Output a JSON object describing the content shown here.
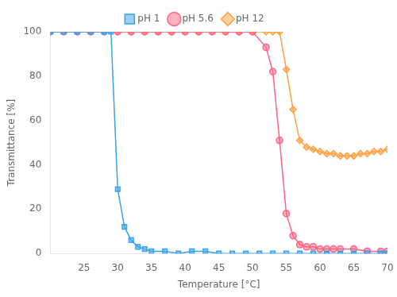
{
  "chart_data": {
    "type": "line",
    "xlabel": "Temperature [°C]",
    "ylabel": "Transmittance [%]",
    "xlim": [
      20,
      70
    ],
    "ylim": [
      0,
      100
    ],
    "xticks": [
      25,
      30,
      35,
      40,
      45,
      50,
      55,
      60,
      65,
      70
    ],
    "yticks": [
      0,
      20,
      40,
      60,
      80,
      100
    ],
    "grid": false,
    "legend": "top",
    "series": [
      {
        "name": "pH 1",
        "marker": "square",
        "line_style": "solid",
        "x": [
          20,
          22,
          24,
          26,
          28,
          29,
          30,
          31,
          32,
          33,
          34,
          35,
          37,
          39,
          41,
          43,
          45,
          47,
          49,
          51,
          53,
          55,
          57,
          59,
          61,
          63,
          65,
          67,
          69,
          70
        ],
        "values": [
          100,
          100,
          100,
          100,
          100,
          100,
          29,
          12,
          6,
          3,
          2,
          1,
          1,
          0,
          1,
          1,
          0,
          0,
          0,
          0,
          0,
          0,
          0,
          0,
          0,
          0,
          0,
          0,
          0,
          0
        ]
      },
      {
        "name": "pH 5.6",
        "marker": "circle",
        "line_style": "solid",
        "x": [
          20,
          22,
          24,
          26,
          28,
          30,
          32,
          34,
          36,
          38,
          40,
          42,
          44,
          46,
          48,
          50,
          52,
          53,
          54,
          55,
          56,
          57,
          58,
          59,
          60,
          61,
          62,
          63,
          65,
          67,
          69,
          70
        ],
        "values": [
          100,
          100,
          100,
          100,
          100,
          100,
          100,
          100,
          100,
          100,
          100,
          100,
          100,
          100,
          100,
          100,
          93,
          82,
          51,
          18,
          8,
          4,
          3,
          3,
          2,
          2,
          2,
          2,
          2,
          1,
          1,
          1
        ]
      },
      {
        "name": "pH 12",
        "marker": "diamond",
        "line_style": "solid",
        "x": [
          20,
          22,
          24,
          26,
          28,
          30,
          32,
          34,
          36,
          38,
          40,
          42,
          44,
          46,
          48,
          50,
          52,
          53,
          54,
          55,
          56,
          57,
          58,
          59,
          60,
          61,
          62,
          63,
          64,
          65,
          66,
          67,
          68,
          69,
          70
        ],
        "values": [
          100,
          100,
          100,
          100,
          100,
          100,
          100,
          100,
          100,
          100,
          100,
          100,
          100,
          100,
          100,
          100,
          100,
          100,
          100,
          83,
          65,
          51,
          48,
          47,
          46,
          45,
          45,
          44,
          44,
          44,
          45,
          45,
          46,
          46,
          47
        ]
      }
    ]
  }
}
